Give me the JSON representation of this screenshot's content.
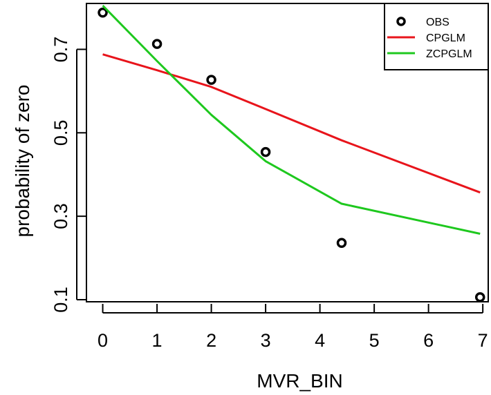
{
  "chart_data": {
    "type": "line",
    "title": "",
    "xlabel": "MVR_BIN",
    "ylabel": "probability of zero",
    "xlim": [
      -0.3,
      7.1
    ],
    "ylim": [
      0.095,
      0.81
    ],
    "x_ticks": [
      0,
      1,
      2,
      3,
      4,
      5,
      6,
      7
    ],
    "y_ticks": [
      0.1,
      0.3,
      0.5,
      0.7
    ],
    "x_tick_labels": [
      "0",
      "1",
      "2",
      "3",
      "4",
      "5",
      "6",
      "7"
    ],
    "y_tick_labels": [
      "0.1",
      "0.3",
      "0.5",
      "0.7"
    ],
    "legend": {
      "position": "top-right",
      "entries": [
        {
          "label": "OBS",
          "symbol": "circle",
          "color": "#000000"
        },
        {
          "label": "CPGLM",
          "symbol": "line",
          "color": "#e8141b"
        },
        {
          "label": "ZCPGLM",
          "symbol": "line",
          "color": "#1ec81e"
        }
      ]
    },
    "series": [
      {
        "name": "OBS",
        "style": "points",
        "color": "#000000",
        "x": [
          0,
          1,
          2,
          3,
          4.4,
          6.95
        ],
        "y": [
          0.788,
          0.713,
          0.627,
          0.454,
          0.236,
          0.106
        ]
      },
      {
        "name": "CPGLM",
        "style": "line",
        "color": "#e8141b",
        "x": [
          0,
          1,
          2,
          3,
          4.4,
          6.95
        ],
        "y": [
          0.688,
          0.65,
          0.61,
          0.557,
          0.482,
          0.357
        ]
      },
      {
        "name": "ZCPGLM",
        "style": "line",
        "color": "#1ec81e",
        "x": [
          0,
          1,
          2,
          3,
          4.4,
          6.95
        ],
        "y": [
          0.805,
          0.672,
          0.543,
          0.432,
          0.33,
          0.258
        ]
      }
    ]
  }
}
